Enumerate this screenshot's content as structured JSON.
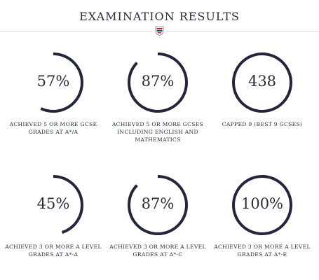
{
  "page": {
    "title": "EXAMINATION RESULTS"
  },
  "colors": {
    "ring": "#23263a",
    "track": "#ffffff",
    "divider": "#d7d7dc",
    "crest_red": "#b3262d",
    "crest_blue": "#2f3f7a"
  },
  "icons": {
    "crest": "school-crest-icon"
  },
  "stats": [
    {
      "value": "57%",
      "progress": 0.57,
      "label": "Achieved 5 or more GCSE grades at A*/A"
    },
    {
      "value": "87%",
      "progress": 0.87,
      "label": "Achieved 5 or more GCSEs including English and Mathematics"
    },
    {
      "value": "438",
      "progress": 1.0,
      "label": "Capped 9 (best 9 GCSEs)"
    },
    {
      "value": "45%",
      "progress": 0.45,
      "label": "Achieved 3 or more A Level grades at A*-A"
    },
    {
      "value": "87%",
      "progress": 0.87,
      "label": "Achieved 3 or more A Level grades at A*-C"
    },
    {
      "value": "100%",
      "progress": 1.0,
      "label": "Achieved 3 or more A Level grades at A*-E"
    }
  ]
}
